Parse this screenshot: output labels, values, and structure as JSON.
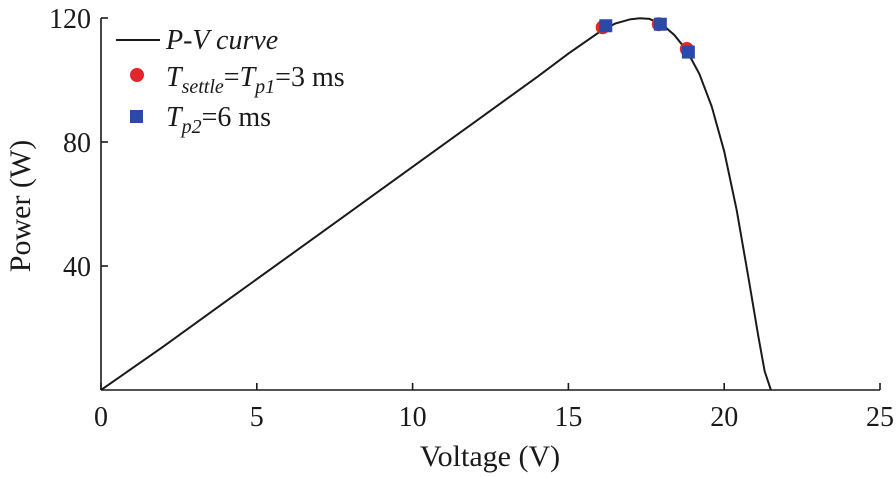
{
  "chart_data": {
    "type": "line",
    "title": "",
    "xlabel": "Voltage (V)",
    "ylabel": "Power (W)",
    "xlim": [
      0,
      25
    ],
    "ylim": [
      0,
      120
    ],
    "x_ticks": [
      0,
      5,
      10,
      15,
      20,
      25
    ],
    "y_ticks": [
      40,
      80,
      120
    ],
    "x_tick_labels": [
      "0",
      "5",
      "10",
      "15",
      "20",
      "25"
    ],
    "y_tick_labels": [
      "40",
      "80",
      "120"
    ],
    "grid": false,
    "legend_position": "top-left",
    "colors": {
      "curve": "#1a1a1a",
      "circle": "#e2262c",
      "square": "#2b4aa8"
    },
    "series": [
      {
        "name": "P-V curve",
        "legend": {
          "main": "P-V curve"
        },
        "kind": "line",
        "x": [
          0,
          2,
          4,
          6,
          8,
          10,
          12,
          14,
          15,
          16,
          16.5,
          17,
          17.3,
          17.6,
          18,
          18.4,
          18.8,
          19.2,
          19.6,
          20,
          20.4,
          20.8,
          21.1,
          21.3,
          21.5
        ],
        "y": [
          0,
          14,
          28.5,
          43,
          57.5,
          72,
          86.5,
          101,
          108.5,
          115.5,
          118.2,
          119.6,
          119.9,
          119.7,
          118,
          114.5,
          109.5,
          102,
          91.5,
          77,
          58,
          35,
          17,
          6,
          0
        ]
      },
      {
        "name": "Tsettle=Tp1=3 ms",
        "legend": {
          "t1": "T",
          "sub1": "settle",
          "eq": "=",
          "t2": "T",
          "sub2": "p1",
          "tail": "=3 ms"
        },
        "kind": "scatter",
        "marker": "circle",
        "x": [
          16.1,
          17.9,
          18.8
        ],
        "y": [
          117,
          118,
          110
        ]
      },
      {
        "name": "Tp2=6 ms",
        "legend": {
          "t1": "T",
          "sub1": "p2",
          "tail": "=6 ms"
        },
        "kind": "scatter",
        "marker": "square",
        "x": [
          16.2,
          17.95,
          18.85
        ],
        "y": [
          117.5,
          118,
          109
        ]
      }
    ]
  }
}
